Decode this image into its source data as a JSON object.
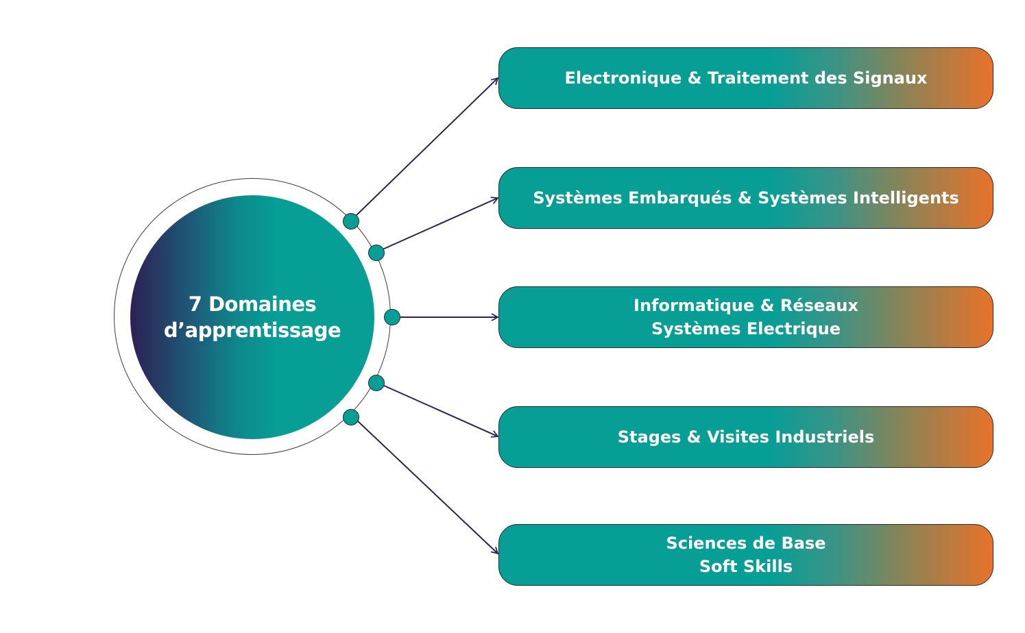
{
  "hub": {
    "line1": "7 Domaines",
    "line2": "d’apprentissage"
  },
  "domains": [
    {
      "lines": [
        "Electronique & Traitement des Signaux"
      ]
    },
    {
      "lines": [
        "Systèmes Embarqués & Systèmes Intelligents"
      ]
    },
    {
      "lines": [
        "Informatique & Réseaux",
        "Systèmes Electrique"
      ]
    },
    {
      "lines": [
        "Stages & Visites Industriels"
      ]
    },
    {
      "lines": [
        "Sciences de Base",
        "Soft Skills"
      ]
    }
  ],
  "colors": {
    "teal": "#079e96",
    "purple": "#2e2054",
    "orange": "#e8722a",
    "connector": "#2e2054"
  }
}
